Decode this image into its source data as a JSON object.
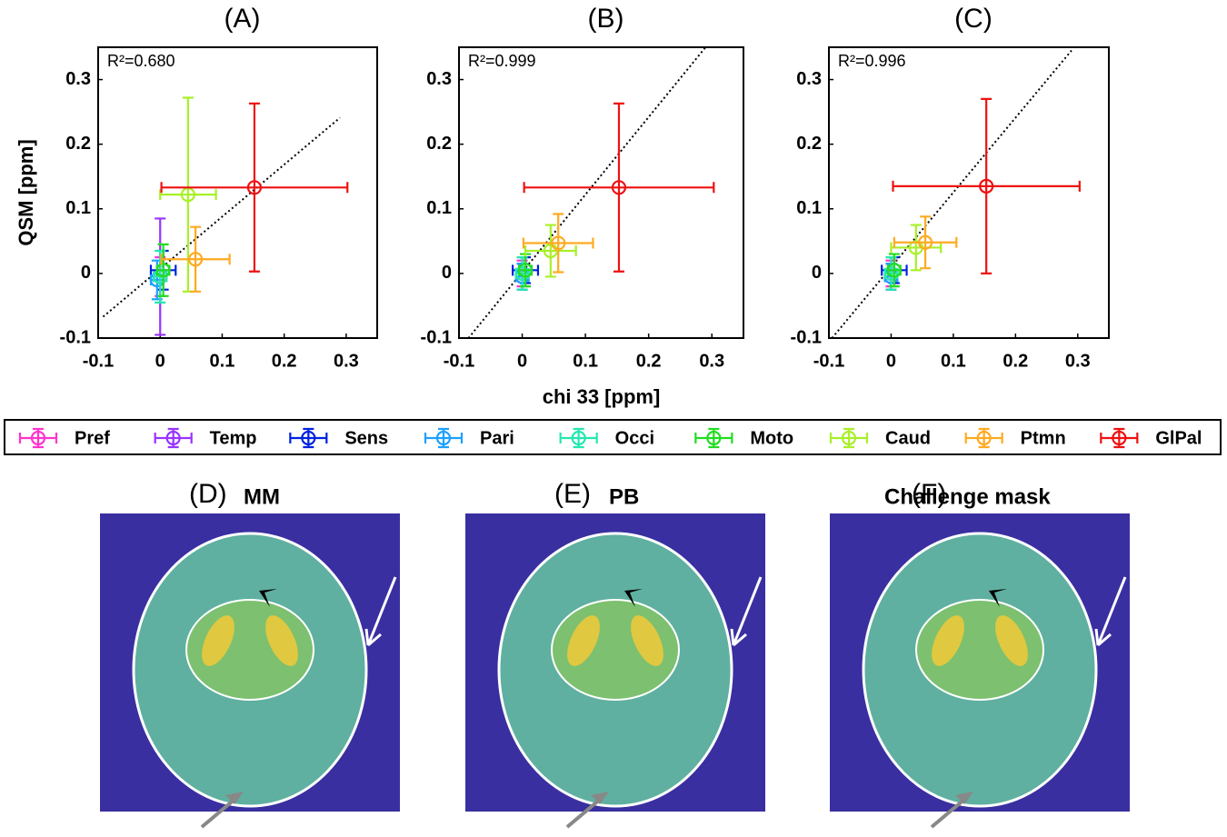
{
  "chart_data": [
    {
      "type": "errorbar",
      "title": "(A)",
      "annotation": "R²=0.680",
      "ylabel": "QSM [ppm]",
      "xlim": [
        -0.1,
        0.35
      ],
      "ylim": [
        -0.1,
        0.35
      ],
      "xticks": [
        -0.1,
        0,
        0.1,
        0.2,
        0.3
      ],
      "yticks": [
        -0.1,
        0,
        0.1,
        0.2,
        0.3
      ],
      "fit": {
        "x": [
          -0.092,
          0.29
        ],
        "y": [
          -0.067,
          0.241
        ]
      },
      "series": [
        {
          "x": 0.0,
          "y": -0.005,
          "xerr": 0.01,
          "yerr": 0.03
        },
        {
          "x": 0.0,
          "y": -0.005,
          "xerr": 0.01,
          "yerr": 0.09
        },
        {
          "x": 0.005,
          "y": 0.005,
          "xerr": 0.02,
          "yerr": 0.03
        },
        {
          "x": -0.005,
          "y": -0.01,
          "xerr": 0.01,
          "yerr": 0.03
        },
        {
          "x": 0.0,
          "y": -0.005,
          "xerr": 0.01,
          "yerr": 0.04
        },
        {
          "x": 0.005,
          "y": 0.005,
          "xerr": 0.01,
          "yerr": 0.04
        },
        {
          "x": 0.045,
          "y": 0.122,
          "xerr": 0.045,
          "yerr": 0.15
        },
        {
          "x": 0.057,
          "y": 0.022,
          "xerr": 0.055,
          "yerr": 0.05
        },
        {
          "x": 0.152,
          "y": 0.133,
          "xerr": 0.15,
          "yerr": 0.13
        }
      ]
    },
    {
      "type": "errorbar",
      "title": "(B)",
      "annotation": "R²=0.999",
      "xlabel": "chi 33 [ppm]",
      "xlim": [
        -0.1,
        0.35
      ],
      "ylim": [
        -0.1,
        0.35
      ],
      "xticks": [
        -0.1,
        0,
        0.1,
        0.2,
        0.3
      ],
      "yticks": [
        -0.1,
        0,
        0.1,
        0.2,
        0.3
      ],
      "fit": {
        "x": [
          -0.085,
          0.29
        ],
        "y": [
          -0.1,
          0.35
        ]
      },
      "series": [
        {
          "x": 0.0,
          "y": 0.0,
          "xerr": 0.01,
          "yerr": 0.02
        },
        {
          "x": 0.0,
          "y": -0.005,
          "xerr": 0.01,
          "yerr": 0.02
        },
        {
          "x": 0.005,
          "y": 0.005,
          "xerr": 0.02,
          "yerr": 0.02
        },
        {
          "x": 0.0,
          "y": -0.005,
          "xerr": 0.01,
          "yerr": 0.02
        },
        {
          "x": 0.0,
          "y": 0.0,
          "xerr": 0.01,
          "yerr": 0.025
        },
        {
          "x": 0.005,
          "y": 0.005,
          "xerr": 0.01,
          "yerr": 0.025
        },
        {
          "x": 0.045,
          "y": 0.035,
          "xerr": 0.04,
          "yerr": 0.04
        },
        {
          "x": 0.057,
          "y": 0.047,
          "xerr": 0.055,
          "yerr": 0.045
        },
        {
          "x": 0.153,
          "y": 0.133,
          "xerr": 0.15,
          "yerr": 0.13
        }
      ]
    },
    {
      "type": "errorbar",
      "title": "(C)",
      "annotation": "R²=0.996",
      "xlim": [
        -0.1,
        0.35
      ],
      "ylim": [
        -0.1,
        0.35
      ],
      "xticks": [
        -0.1,
        0,
        0.1,
        0.2,
        0.3
      ],
      "yticks": [
        -0.1,
        0,
        0.1,
        0.2,
        0.3
      ],
      "fit": {
        "x": [
          -0.095,
          0.29
        ],
        "y": [
          -0.1,
          0.345
        ]
      },
      "series": [
        {
          "x": 0.0,
          "y": 0.0,
          "xerr": 0.01,
          "yerr": 0.02
        },
        {
          "x": 0.0,
          "y": -0.005,
          "xerr": 0.01,
          "yerr": 0.02
        },
        {
          "x": 0.005,
          "y": 0.005,
          "xerr": 0.02,
          "yerr": 0.02
        },
        {
          "x": 0.0,
          "y": -0.005,
          "xerr": 0.01,
          "yerr": 0.02
        },
        {
          "x": 0.0,
          "y": 0.0,
          "xerr": 0.01,
          "yerr": 0.025
        },
        {
          "x": 0.005,
          "y": 0.005,
          "xerr": 0.01,
          "yerr": 0.025
        },
        {
          "x": 0.04,
          "y": 0.04,
          "xerr": 0.04,
          "yerr": 0.035
        },
        {
          "x": 0.055,
          "y": 0.048,
          "xerr": 0.05,
          "yerr": 0.04
        },
        {
          "x": 0.153,
          "y": 0.135,
          "xerr": 0.15,
          "yerr": 0.135
        }
      ]
    }
  ],
  "legend": [
    {
      "name": "Pref",
      "color": "#ff33cc"
    },
    {
      "name": "Temp",
      "color": "#9933ff"
    },
    {
      "name": "Sens",
      "color": "#0022dd"
    },
    {
      "name": "Pari",
      "color": "#1ea0ff"
    },
    {
      "name": "Occi",
      "color": "#22e8b0"
    },
    {
      "name": "Moto",
      "color": "#22dd22"
    },
    {
      "name": "Caud",
      "color": "#a8f028"
    },
    {
      "name": "Ptmn",
      "color": "#ffaa22"
    },
    {
      "name": "GlPal",
      "color": "#ee1111"
    }
  ],
  "images": [
    {
      "label": "(D)",
      "title": "MM"
    },
    {
      "label": "(E)",
      "title": "PB"
    },
    {
      "label": "(F)",
      "title": "Challenge mask"
    }
  ]
}
